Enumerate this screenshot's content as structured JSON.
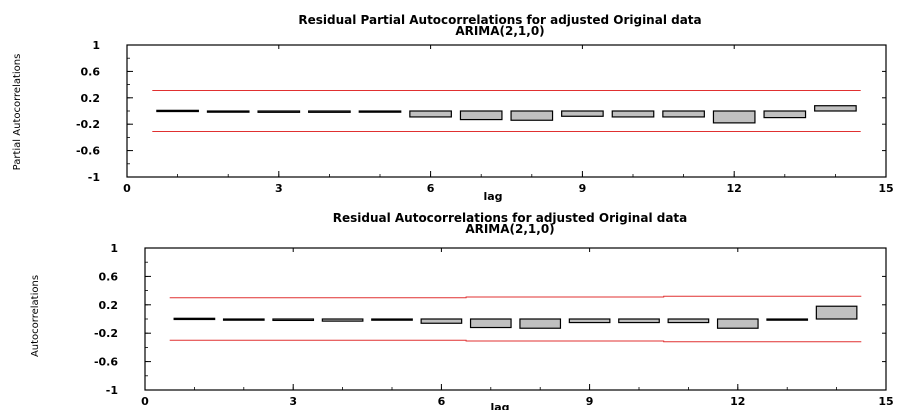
{
  "colors": {
    "bar_fill": "#c0c0c0",
    "bar_stroke": "#000000",
    "limit_line": "#e03030",
    "axis": "#000000"
  },
  "chart_data": [
    {
      "type": "bar",
      "title": "Residual Partial Autocorrelations for adjusted Original data",
      "subtitle": "ARIMA(2,1,0)",
      "xlabel": "lag",
      "ylabel": "Partial Autocorrelations",
      "xlim": [
        0,
        15
      ],
      "ylim": [
        -1,
        1
      ],
      "xticks": [
        "0",
        "3",
        "6",
        "9",
        "12",
        "15"
      ],
      "yticks": [
        "1",
        "0.6",
        "0.2",
        "-0.2",
        "-0.6",
        "-1"
      ],
      "x": [
        1,
        2,
        3,
        4,
        5,
        6,
        7,
        8,
        9,
        10,
        11,
        12,
        13,
        14
      ],
      "values": [
        0.01,
        -0.01,
        -0.02,
        -0.02,
        -0.01,
        -0.09,
        -0.13,
        -0.14,
        -0.08,
        -0.09,
        -0.09,
        -0.18,
        -0.1,
        0.08
      ],
      "upper_limit": [
        0.31,
        0.31,
        0.31,
        0.31,
        0.31,
        0.31,
        0.31,
        0.31,
        0.31,
        0.31,
        0.31,
        0.31,
        0.31,
        0.31
      ],
      "lower_limit": [
        -0.31,
        -0.31,
        -0.31,
        -0.31,
        -0.31,
        -0.31,
        -0.31,
        -0.31,
        -0.31,
        -0.31,
        -0.31,
        -0.31,
        -0.31,
        -0.31
      ],
      "grid": false
    },
    {
      "type": "bar",
      "title": "Residual Autocorrelations for adjusted Original data",
      "subtitle": "ARIMA(2,1,0)",
      "xlabel": "lag",
      "ylabel": "Autocorrelations",
      "xlim": [
        0,
        15
      ],
      "ylim": [
        -1,
        1
      ],
      "xticks": [
        "0",
        "3",
        "6",
        "9",
        "12",
        "15"
      ],
      "yticks": [
        "1",
        "0.6",
        "0.2",
        "-0.2",
        "-0.6",
        "-1"
      ],
      "x": [
        1,
        2,
        3,
        4,
        5,
        6,
        7,
        8,
        9,
        10,
        11,
        12,
        13,
        14
      ],
      "values": [
        0.01,
        -0.01,
        -0.02,
        -0.03,
        -0.01,
        -0.06,
        -0.12,
        -0.13,
        -0.05,
        -0.05,
        -0.05,
        -0.13,
        -0.01,
        0.18
      ],
      "upper_limit": [
        0.3,
        0.3,
        0.3,
        0.3,
        0.3,
        0.3,
        0.31,
        0.31,
        0.31,
        0.31,
        0.32,
        0.32,
        0.32,
        0.32
      ],
      "lower_limit": [
        -0.3,
        -0.3,
        -0.3,
        -0.3,
        -0.3,
        -0.3,
        -0.31,
        -0.31,
        -0.31,
        -0.31,
        -0.32,
        -0.32,
        -0.32,
        -0.32
      ],
      "grid": false
    }
  ]
}
